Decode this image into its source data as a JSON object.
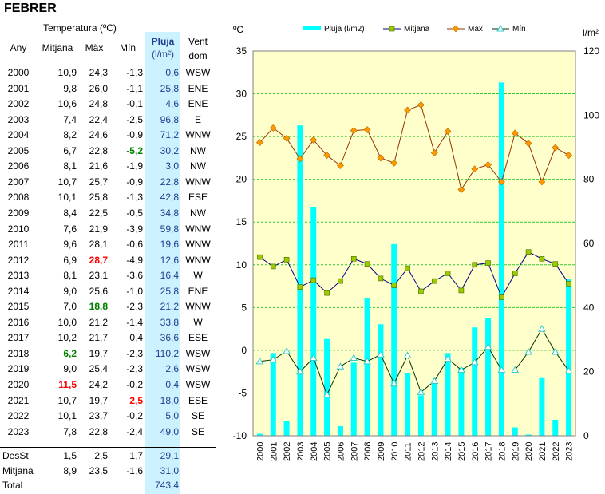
{
  "title": "FEBRER",
  "table": {
    "header_group": "Temperatura (ºC)",
    "col_any": "Any",
    "col_mitjana": "Mitjana",
    "col_max": "Màx",
    "col_min": "Mín",
    "col_pluja": "Pluja",
    "col_pluja_unit": "(l/m²)",
    "col_vent": "Vent",
    "col_vent_sub": "dom",
    "rows": [
      {
        "any": "2000",
        "mitjana": "10,9",
        "max": "24,3",
        "min": "-1,3",
        "pluja": "0,6",
        "vent": "WSW"
      },
      {
        "any": "2001",
        "mitjana": "9,8",
        "max": "26,0",
        "min": "-1,1",
        "pluja": "25,8",
        "vent": "ENE"
      },
      {
        "any": "2002",
        "mitjana": "10,6",
        "max": "24,8",
        "min": "-0,1",
        "pluja": "4,6",
        "vent": "ENE"
      },
      {
        "any": "2003",
        "mitjana": "7,4",
        "max": "22,4",
        "min": "-2,5",
        "pluja": "96,8",
        "vent": "E"
      },
      {
        "any": "2004",
        "mitjana": "8,2",
        "max": "24,6",
        "min": "-0,9",
        "pluja": "71,2",
        "vent": "WNW"
      },
      {
        "any": "2005",
        "mitjana": "6,7",
        "max": "22,8",
        "min": "-5,2",
        "pluja": "30,2",
        "vent": "NW"
      },
      {
        "any": "2006",
        "mitjana": "8,1",
        "max": "21,6",
        "min": "-1,9",
        "pluja": "3,0",
        "vent": "NW"
      },
      {
        "any": "2007",
        "mitjana": "10,7",
        "max": "25,7",
        "min": "-0,9",
        "pluja": "22,8",
        "vent": "WNW"
      },
      {
        "any": "2008",
        "mitjana": "10,1",
        "max": "25,8",
        "min": "-1,3",
        "pluja": "42,8",
        "vent": "ESE"
      },
      {
        "any": "2009",
        "mitjana": "8,4",
        "max": "22,5",
        "min": "-0,5",
        "pluja": "34,8",
        "vent": "NW"
      },
      {
        "any": "2010",
        "mitjana": "7,6",
        "max": "21,9",
        "min": "-3,9",
        "pluja": "59,8",
        "vent": "WNW"
      },
      {
        "any": "2011",
        "mitjana": "9,6",
        "max": "28,1",
        "min": "-0,6",
        "pluja": "19,6",
        "vent": "WNW"
      },
      {
        "any": "2012",
        "mitjana": "6,9",
        "max": "28,7",
        "min": "-4,9",
        "pluja": "12,6",
        "vent": "WNW"
      },
      {
        "any": "2013",
        "mitjana": "8,1",
        "max": "23,1",
        "min": "-3,6",
        "pluja": "16,4",
        "vent": "W"
      },
      {
        "any": "2014",
        "mitjana": "9,0",
        "max": "25,6",
        "min": "-1,0",
        "pluja": "25,8",
        "vent": "ENE"
      },
      {
        "any": "2015",
        "mitjana": "7,0",
        "max": "18,8",
        "min": "-2,3",
        "pluja": "21,2",
        "vent": "WNW"
      },
      {
        "any": "2016",
        "mitjana": "10,0",
        "max": "21,2",
        "min": "-1,4",
        "pluja": "33,8",
        "vent": "W"
      },
      {
        "any": "2017",
        "mitjana": "10,2",
        "max": "21,7",
        "min": "0,4",
        "pluja": "36,6",
        "vent": "ESE"
      },
      {
        "any": "2018",
        "mitjana": "6,2",
        "max": "19,7",
        "min": "-2,3",
        "pluja": "110,2",
        "vent": "WSW"
      },
      {
        "any": "2019",
        "mitjana": "9,0",
        "max": "25,4",
        "min": "-2,3",
        "pluja": "2,6",
        "vent": "WSW"
      },
      {
        "any": "2020",
        "mitjana": "11,5",
        "max": "24,2",
        "min": "-0,2",
        "pluja": "0,4",
        "vent": "WSW"
      },
      {
        "any": "2021",
        "mitjana": "10,7",
        "max": "19,7",
        "min": "2,5",
        "pluja": "18,0",
        "vent": "ESE"
      },
      {
        "any": "2022",
        "mitjana": "10,1",
        "max": "23,7",
        "min": "-0,2",
        "pluja": "5,0",
        "vent": "SE"
      },
      {
        "any": "2023",
        "mitjana": "7,8",
        "max": "22,8",
        "min": "-2,4",
        "pluja": "49,0",
        "vent": "SE"
      }
    ],
    "highlights": {
      "2005": {
        "min": "green"
      },
      "2012": {
        "max": "red"
      },
      "2015": {
        "max": "green"
      },
      "2018": {
        "mitjana": "green"
      },
      "2020": {
        "mitjana": "red"
      },
      "2021": {
        "min": "red"
      }
    },
    "desst": {
      "label": "DesSt",
      "mitjana": "1,5",
      "max": "2,5",
      "min": "1,7",
      "pluja": "29,1"
    },
    "mitjana_row": {
      "label": "Mitjana",
      "mitjana": "8,9",
      "max": "23,5",
      "min": "-1,6",
      "pluja": "31,0"
    },
    "total_row": {
      "label": "Total",
      "pluja": "743,4"
    }
  },
  "colors": {
    "rain_bar": "#00ffff",
    "mitjana_line": "#000080",
    "mitjana_marker": "#99cc00",
    "max_line": "#993300",
    "max_marker": "#ff9900",
    "min_line": "#003300",
    "min_marker": "#33cccc",
    "plot_bg": "#ffffcc",
    "grid": "#33cc33",
    "pluja_column_bg": "#ccf2ff"
  },
  "chart_data": {
    "type": "bar",
    "left_axis_label": "ºC",
    "right_axis_label": "l/m²",
    "ylim_left": [
      -10,
      35
    ],
    "ylim_right": [
      0,
      120
    ],
    "left_ticks": [
      "-10",
      "-5",
      "0",
      "5",
      "10",
      "15",
      "20",
      "25",
      "30",
      "35"
    ],
    "right_ticks": [
      "0",
      "20",
      "40",
      "60",
      "80",
      "100",
      "120"
    ],
    "grid": true,
    "legend_position": "top",
    "categories": [
      "2000",
      "2001",
      "2002",
      "2003",
      "2004",
      "2005",
      "2006",
      "2007",
      "2008",
      "2009",
      "2010",
      "2011",
      "2012",
      "2013",
      "2014",
      "2015",
      "2016",
      "2017",
      "2018",
      "2019",
      "2020",
      "2021",
      "2022",
      "2023"
    ],
    "series": [
      {
        "name": "Pluja (l/m2)",
        "kind": "bar",
        "axis": "right",
        "values": [
          0.6,
          25.8,
          4.6,
          96.8,
          71.2,
          30.2,
          3.0,
          22.8,
          42.8,
          34.8,
          59.8,
          19.6,
          12.6,
          16.4,
          25.8,
          21.2,
          33.8,
          36.6,
          110.2,
          2.6,
          0.4,
          18.0,
          5.0,
          49.0
        ]
      },
      {
        "name": "Mitjana",
        "kind": "line",
        "axis": "left",
        "marker": "square",
        "values": [
          10.9,
          9.8,
          10.6,
          7.4,
          8.2,
          6.7,
          8.1,
          10.7,
          10.1,
          8.4,
          7.6,
          9.6,
          6.9,
          8.1,
          9.0,
          7.0,
          10.0,
          10.2,
          6.2,
          9.0,
          11.5,
          10.7,
          10.1,
          7.8
        ]
      },
      {
        "name": "Màx",
        "kind": "line",
        "axis": "left",
        "marker": "diamond",
        "values": [
          24.3,
          26.0,
          24.8,
          22.4,
          24.6,
          22.8,
          21.6,
          25.7,
          25.8,
          22.5,
          21.9,
          28.1,
          28.7,
          23.1,
          25.6,
          18.8,
          21.2,
          21.7,
          19.7,
          25.4,
          24.2,
          19.7,
          23.7,
          22.8
        ]
      },
      {
        "name": "Mín",
        "kind": "line",
        "axis": "left",
        "marker": "triangle",
        "values": [
          -1.3,
          -1.1,
          -0.1,
          -2.5,
          -0.9,
          -5.2,
          -1.9,
          -0.9,
          -1.3,
          -0.5,
          -3.9,
          -0.6,
          -4.9,
          -3.6,
          -1.0,
          -2.3,
          -1.4,
          0.4,
          -2.3,
          -2.3,
          -0.2,
          2.5,
          -0.2,
          -2.4
        ]
      }
    ]
  }
}
